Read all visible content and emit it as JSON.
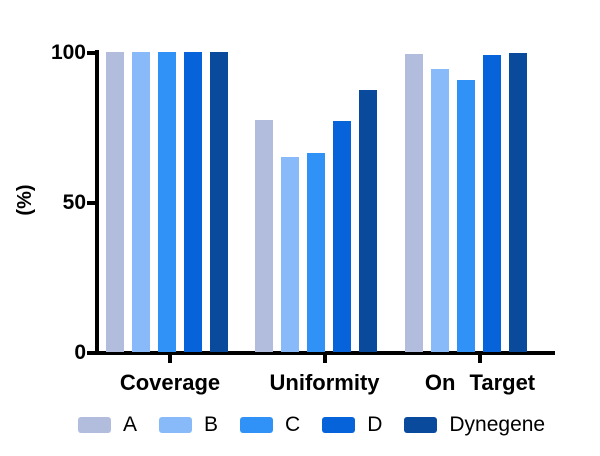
{
  "chart_data": {
    "type": "bar",
    "title": "",
    "xlabel": "",
    "ylabel": "(%)",
    "ylim": [
      0,
      100
    ],
    "yticks": [
      0,
      50,
      100
    ],
    "grid": false,
    "legend_position": "bottom",
    "categories": [
      "Coverage",
      "Uniformity",
      "On Target"
    ],
    "series": [
      {
        "name": "A",
        "color": "#b2bcdd",
        "values": [
          100,
          77.3,
          99.4
        ]
      },
      {
        "name": "B",
        "color": "#88baf9",
        "values": [
          100,
          64.9,
          94.4
        ]
      },
      {
        "name": "C",
        "color": "#3092f7",
        "values": [
          100,
          66.4,
          90.8
        ]
      },
      {
        "name": "D",
        "color": "#0663da",
        "values": [
          100,
          77.1,
          98.9
        ]
      },
      {
        "name": "Dynegene",
        "color": "#0a4a9c",
        "values": [
          100,
          87.5,
          99.8
        ]
      }
    ],
    "axis_color": "#000000",
    "background_color": "#ffffff"
  }
}
